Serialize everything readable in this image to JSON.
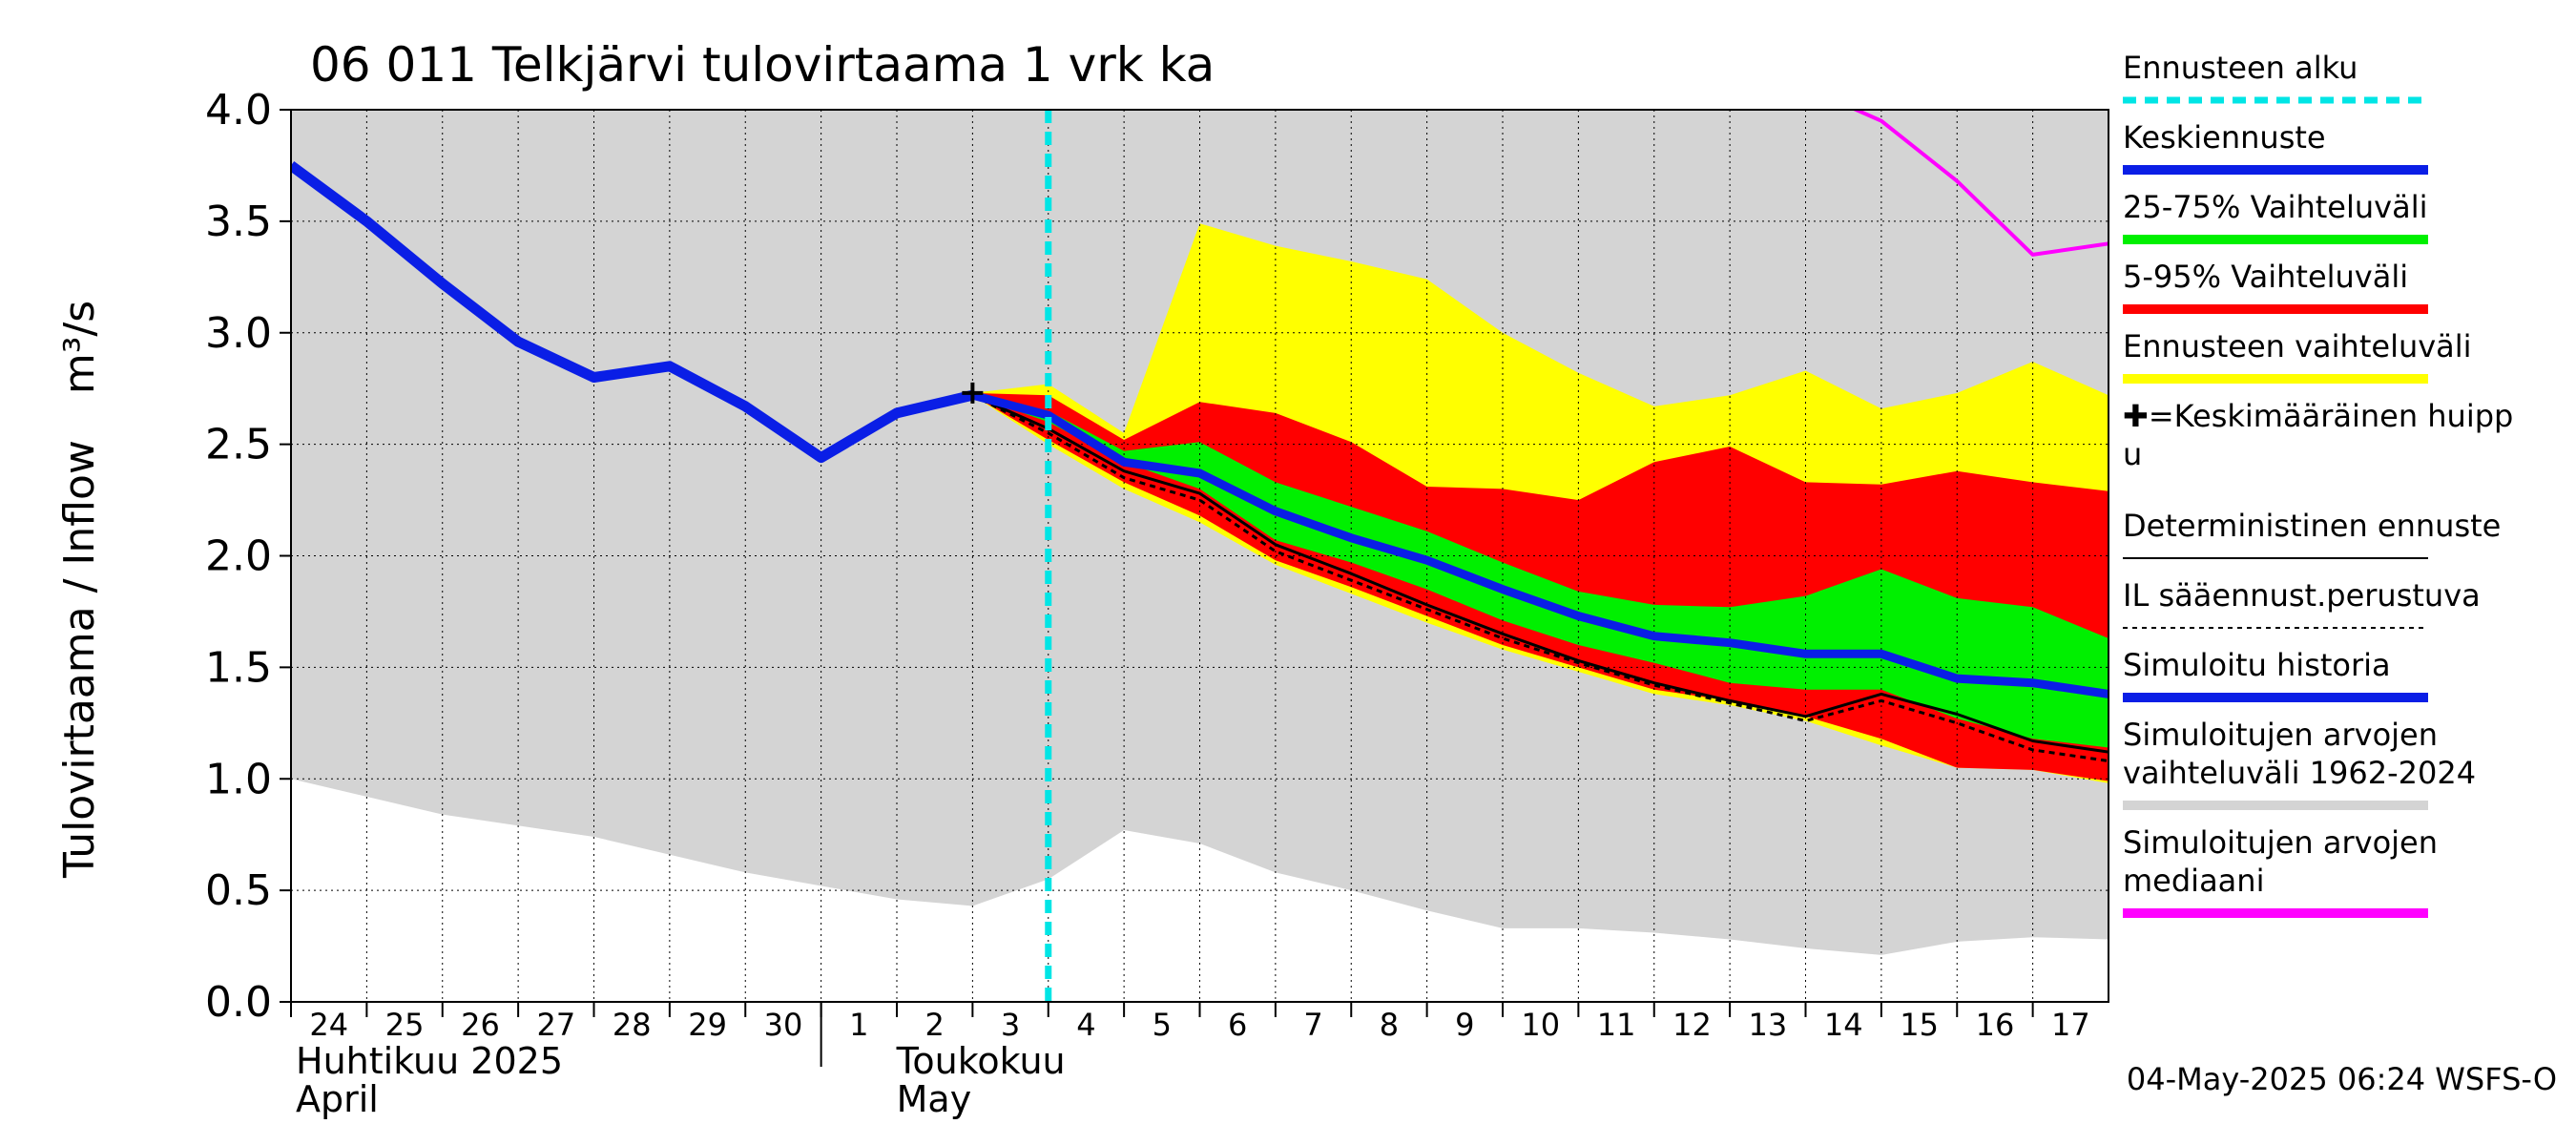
{
  "chart_data": {
    "type": "area",
    "title": "06 011 Telkjärvi tulovirtaama 1 vrk ka",
    "ylabel": "Tulovirtaama / Inflow",
    "yunit": "m³/s",
    "ylim": [
      0.0,
      4.0
    ],
    "yticks": [
      "0.0",
      "0.5",
      "1.0",
      "1.5",
      "2.0",
      "2.5",
      "3.0",
      "3.5",
      "4.0"
    ],
    "xlim": [
      "2025-04-24",
      "2025-05-18"
    ],
    "grid": true,
    "legend_position": "right",
    "x_tick_labels": [
      "24",
      "25",
      "26",
      "27",
      "28",
      "29",
      "30",
      "1",
      "2",
      "3",
      "4",
      "5",
      "6",
      "7",
      "8",
      "9",
      "10",
      "11",
      "12",
      "13",
      "14",
      "15",
      "16",
      "17"
    ],
    "month_labels": [
      {
        "fi": "Huhtikuu  2025",
        "en": "April"
      },
      {
        "fi": "Toukokuu",
        "en": "May"
      }
    ],
    "forecast_start": "2025-05-04",
    "mean_peak": {
      "x": "2025-05-03",
      "y": 2.73
    },
    "series": {
      "historical_range": {
        "x": [
          "2025-04-24",
          "2025-04-26",
          "2025-04-28",
          "2025-04-30",
          "2025-05-02",
          "2025-05-03",
          "2025-05-04",
          "2025-05-05",
          "2025-05-06",
          "2025-05-07",
          "2025-05-08",
          "2025-05-09",
          "2025-05-10",
          "2025-05-11",
          "2025-05-12",
          "2025-05-13",
          "2025-05-14",
          "2025-05-15",
          "2025-05-16",
          "2025-05-17",
          "2025-05-18"
        ],
        "low": [
          1.0,
          0.84,
          0.74,
          0.58,
          0.46,
          0.43,
          0.55,
          0.77,
          0.71,
          0.58,
          0.5,
          0.41,
          0.33,
          0.33,
          0.31,
          0.28,
          0.24,
          0.21,
          0.27,
          0.29,
          0.28
        ],
        "high": [
          4.0,
          4.0,
          4.0,
          4.0,
          4.0,
          4.0,
          4.0,
          4.0,
          4.0,
          4.0,
          4.0,
          4.0,
          4.0,
          4.0,
          4.0,
          4.0,
          4.0,
          4.0,
          4.0,
          4.0,
          4.0
        ]
      },
      "median": {
        "x": [
          "2025-05-14",
          "2025-05-15",
          "2025-05-16",
          "2025-05-17",
          "2025-05-18"
        ],
        "y": [
          4.1,
          3.95,
          3.68,
          3.35,
          3.4
        ]
      },
      "forecast_range": {
        "x": [
          "2025-05-03",
          "2025-05-04",
          "2025-05-05",
          "2025-05-06",
          "2025-05-07",
          "2025-05-08",
          "2025-05-09",
          "2025-05-10",
          "2025-05-11",
          "2025-05-12",
          "2025-05-13",
          "2025-05-14",
          "2025-05-15",
          "2025-05-16",
          "2025-05-17",
          "2025-05-18"
        ],
        "low": [
          2.72,
          2.5,
          2.3,
          2.15,
          1.96,
          1.83,
          1.7,
          1.58,
          1.48,
          1.38,
          1.33,
          1.26,
          1.15,
          1.05,
          1.04,
          0.98
        ],
        "high": [
          2.73,
          2.77,
          2.55,
          3.49,
          3.39,
          3.32,
          3.24,
          3.0,
          2.82,
          2.67,
          2.72,
          2.83,
          2.66,
          2.73,
          2.87,
          2.72
        ]
      },
      "range_5_95": {
        "x": [
          "2025-05-03",
          "2025-05-04",
          "2025-05-05",
          "2025-05-06",
          "2025-05-07",
          "2025-05-08",
          "2025-05-09",
          "2025-05-10",
          "2025-05-11",
          "2025-05-12",
          "2025-05-13",
          "2025-05-14",
          "2025-05-15",
          "2025-05-16",
          "2025-05-17",
          "2025-05-18"
        ],
        "low": [
          2.72,
          2.52,
          2.33,
          2.18,
          1.98,
          1.86,
          1.73,
          1.6,
          1.5,
          1.4,
          1.35,
          1.28,
          1.18,
          1.05,
          1.04,
          0.99
        ],
        "high": [
          2.73,
          2.72,
          2.52,
          2.69,
          2.64,
          2.51,
          2.31,
          2.3,
          2.25,
          2.42,
          2.49,
          2.33,
          2.32,
          2.38,
          2.33,
          2.29
        ]
      },
      "range_25_75": {
        "x": [
          "2025-05-03",
          "2025-05-04",
          "2025-05-05",
          "2025-05-06",
          "2025-05-07",
          "2025-05-08",
          "2025-05-09",
          "2025-05-10",
          "2025-05-11",
          "2025-05-12",
          "2025-05-13",
          "2025-05-14",
          "2025-05-15",
          "2025-05-16",
          "2025-05-17",
          "2025-05-18"
        ],
        "low": [
          2.72,
          2.6,
          2.42,
          2.3,
          2.07,
          1.97,
          1.85,
          1.71,
          1.6,
          1.52,
          1.43,
          1.4,
          1.4,
          1.27,
          1.18,
          1.14
        ],
        "high": [
          2.73,
          2.65,
          2.47,
          2.51,
          2.33,
          2.22,
          2.11,
          1.97,
          1.84,
          1.78,
          1.77,
          1.82,
          1.94,
          1.81,
          1.77,
          1.63
        ]
      },
      "simulated_history": {
        "x": [
          "2025-04-24",
          "2025-04-25",
          "2025-04-26",
          "2025-04-27",
          "2025-04-28",
          "2025-04-29",
          "2025-04-30",
          "2025-05-01",
          "2025-05-02",
          "2025-05-03"
        ],
        "y": [
          3.75,
          3.5,
          3.22,
          2.96,
          2.8,
          2.85,
          2.67,
          2.44,
          2.64,
          2.72
        ]
      },
      "mean_forecast": {
        "x": [
          "2025-05-03",
          "2025-05-04",
          "2025-05-05",
          "2025-05-06",
          "2025-05-07",
          "2025-05-08",
          "2025-05-09",
          "2025-05-10",
          "2025-05-11",
          "2025-05-12",
          "2025-05-13",
          "2025-05-14",
          "2025-05-15",
          "2025-05-16",
          "2025-05-17",
          "2025-05-18"
        ],
        "y": [
          2.72,
          2.63,
          2.42,
          2.37,
          2.2,
          2.08,
          1.98,
          1.85,
          1.73,
          1.64,
          1.61,
          1.56,
          1.56,
          1.45,
          1.43,
          1.38
        ]
      },
      "deterministic": {
        "x": [
          "2025-05-03",
          "2025-05-04",
          "2025-05-05",
          "2025-05-06",
          "2025-05-07",
          "2025-05-08",
          "2025-05-09",
          "2025-05-10",
          "2025-05-11",
          "2025-05-12",
          "2025-05-13",
          "2025-05-14",
          "2025-05-15",
          "2025-05-16",
          "2025-05-17",
          "2025-05-18"
        ],
        "y": [
          2.72,
          2.57,
          2.38,
          2.28,
          2.05,
          1.92,
          1.78,
          1.65,
          1.53,
          1.43,
          1.35,
          1.28,
          1.38,
          1.29,
          1.17,
          1.12
        ]
      },
      "il_weather_forecast": {
        "x": [
          "2025-05-03",
          "2025-05-04",
          "2025-05-05",
          "2025-05-06",
          "2025-05-07",
          "2025-05-08",
          "2025-05-09",
          "2025-05-10",
          "2025-05-11",
          "2025-05-12",
          "2025-05-13",
          "2025-05-14",
          "2025-05-15",
          "2025-05-16",
          "2025-05-17",
          "2025-05-18"
        ],
        "y": [
          2.72,
          2.55,
          2.35,
          2.25,
          2.02,
          1.89,
          1.76,
          1.63,
          1.52,
          1.42,
          1.34,
          1.26,
          1.35,
          1.25,
          1.13,
          1.08
        ]
      }
    },
    "legend": [
      {
        "label": "Ennusteen alku",
        "color": "#00e5e5",
        "style": "dashed"
      },
      {
        "label": "Keskiennuste",
        "color": "#0a1ee6",
        "style": "solid"
      },
      {
        "label": "25-75% Vaihteluväli",
        "color": "#00f000",
        "style": "solid"
      },
      {
        "label": "5-95% Vaihteluväli",
        "color": "#ff0000",
        "style": "solid"
      },
      {
        "label": "Ennusteen vaihteluväli",
        "color": "#ffff00",
        "style": "solid"
      },
      {
        "label": "✚=Keskimääräinen huippu",
        "label_lines": [
          "✚=Keskimääräinen huipp",
          "u"
        ],
        "color": "#000000",
        "style": "marker"
      },
      {
        "label": "Deterministinen ennuste",
        "color": "#000000",
        "style": "thin"
      },
      {
        "label": "IL sääennust.perustuva",
        "color": "#000000",
        "style": "dotted"
      },
      {
        "label": "Simuloitu historia",
        "color": "#0a1ee6",
        "style": "solid"
      },
      {
        "label": "Simuloitujen arvojen vaihteluväli 1962-2024",
        "label_lines": [
          "Simuloitujen arvojen",
          "vaihteluväli 1962-2024"
        ],
        "color": "#d4d4d4",
        "style": "solid"
      },
      {
        "label": "Simuloitujen arvojen mediaani",
        "label_lines": [
          "Simuloitujen arvojen",
          "mediaani"
        ],
        "color": "#ff00ff",
        "style": "solid"
      }
    ],
    "timestamp": "04-May-2025 06:24 WSFS-O"
  },
  "colors": {
    "historical_range": "#d4d4d4",
    "forecast_range": "#ffff00",
    "range_5_95": "#ff0000",
    "range_25_75": "#00f000",
    "mean_forecast": "#0a1ee6",
    "simulated_history": "#0a1ee6",
    "median": "#ff00ff",
    "forecast_start": "#00e5e5",
    "deterministic": "#000000"
  }
}
